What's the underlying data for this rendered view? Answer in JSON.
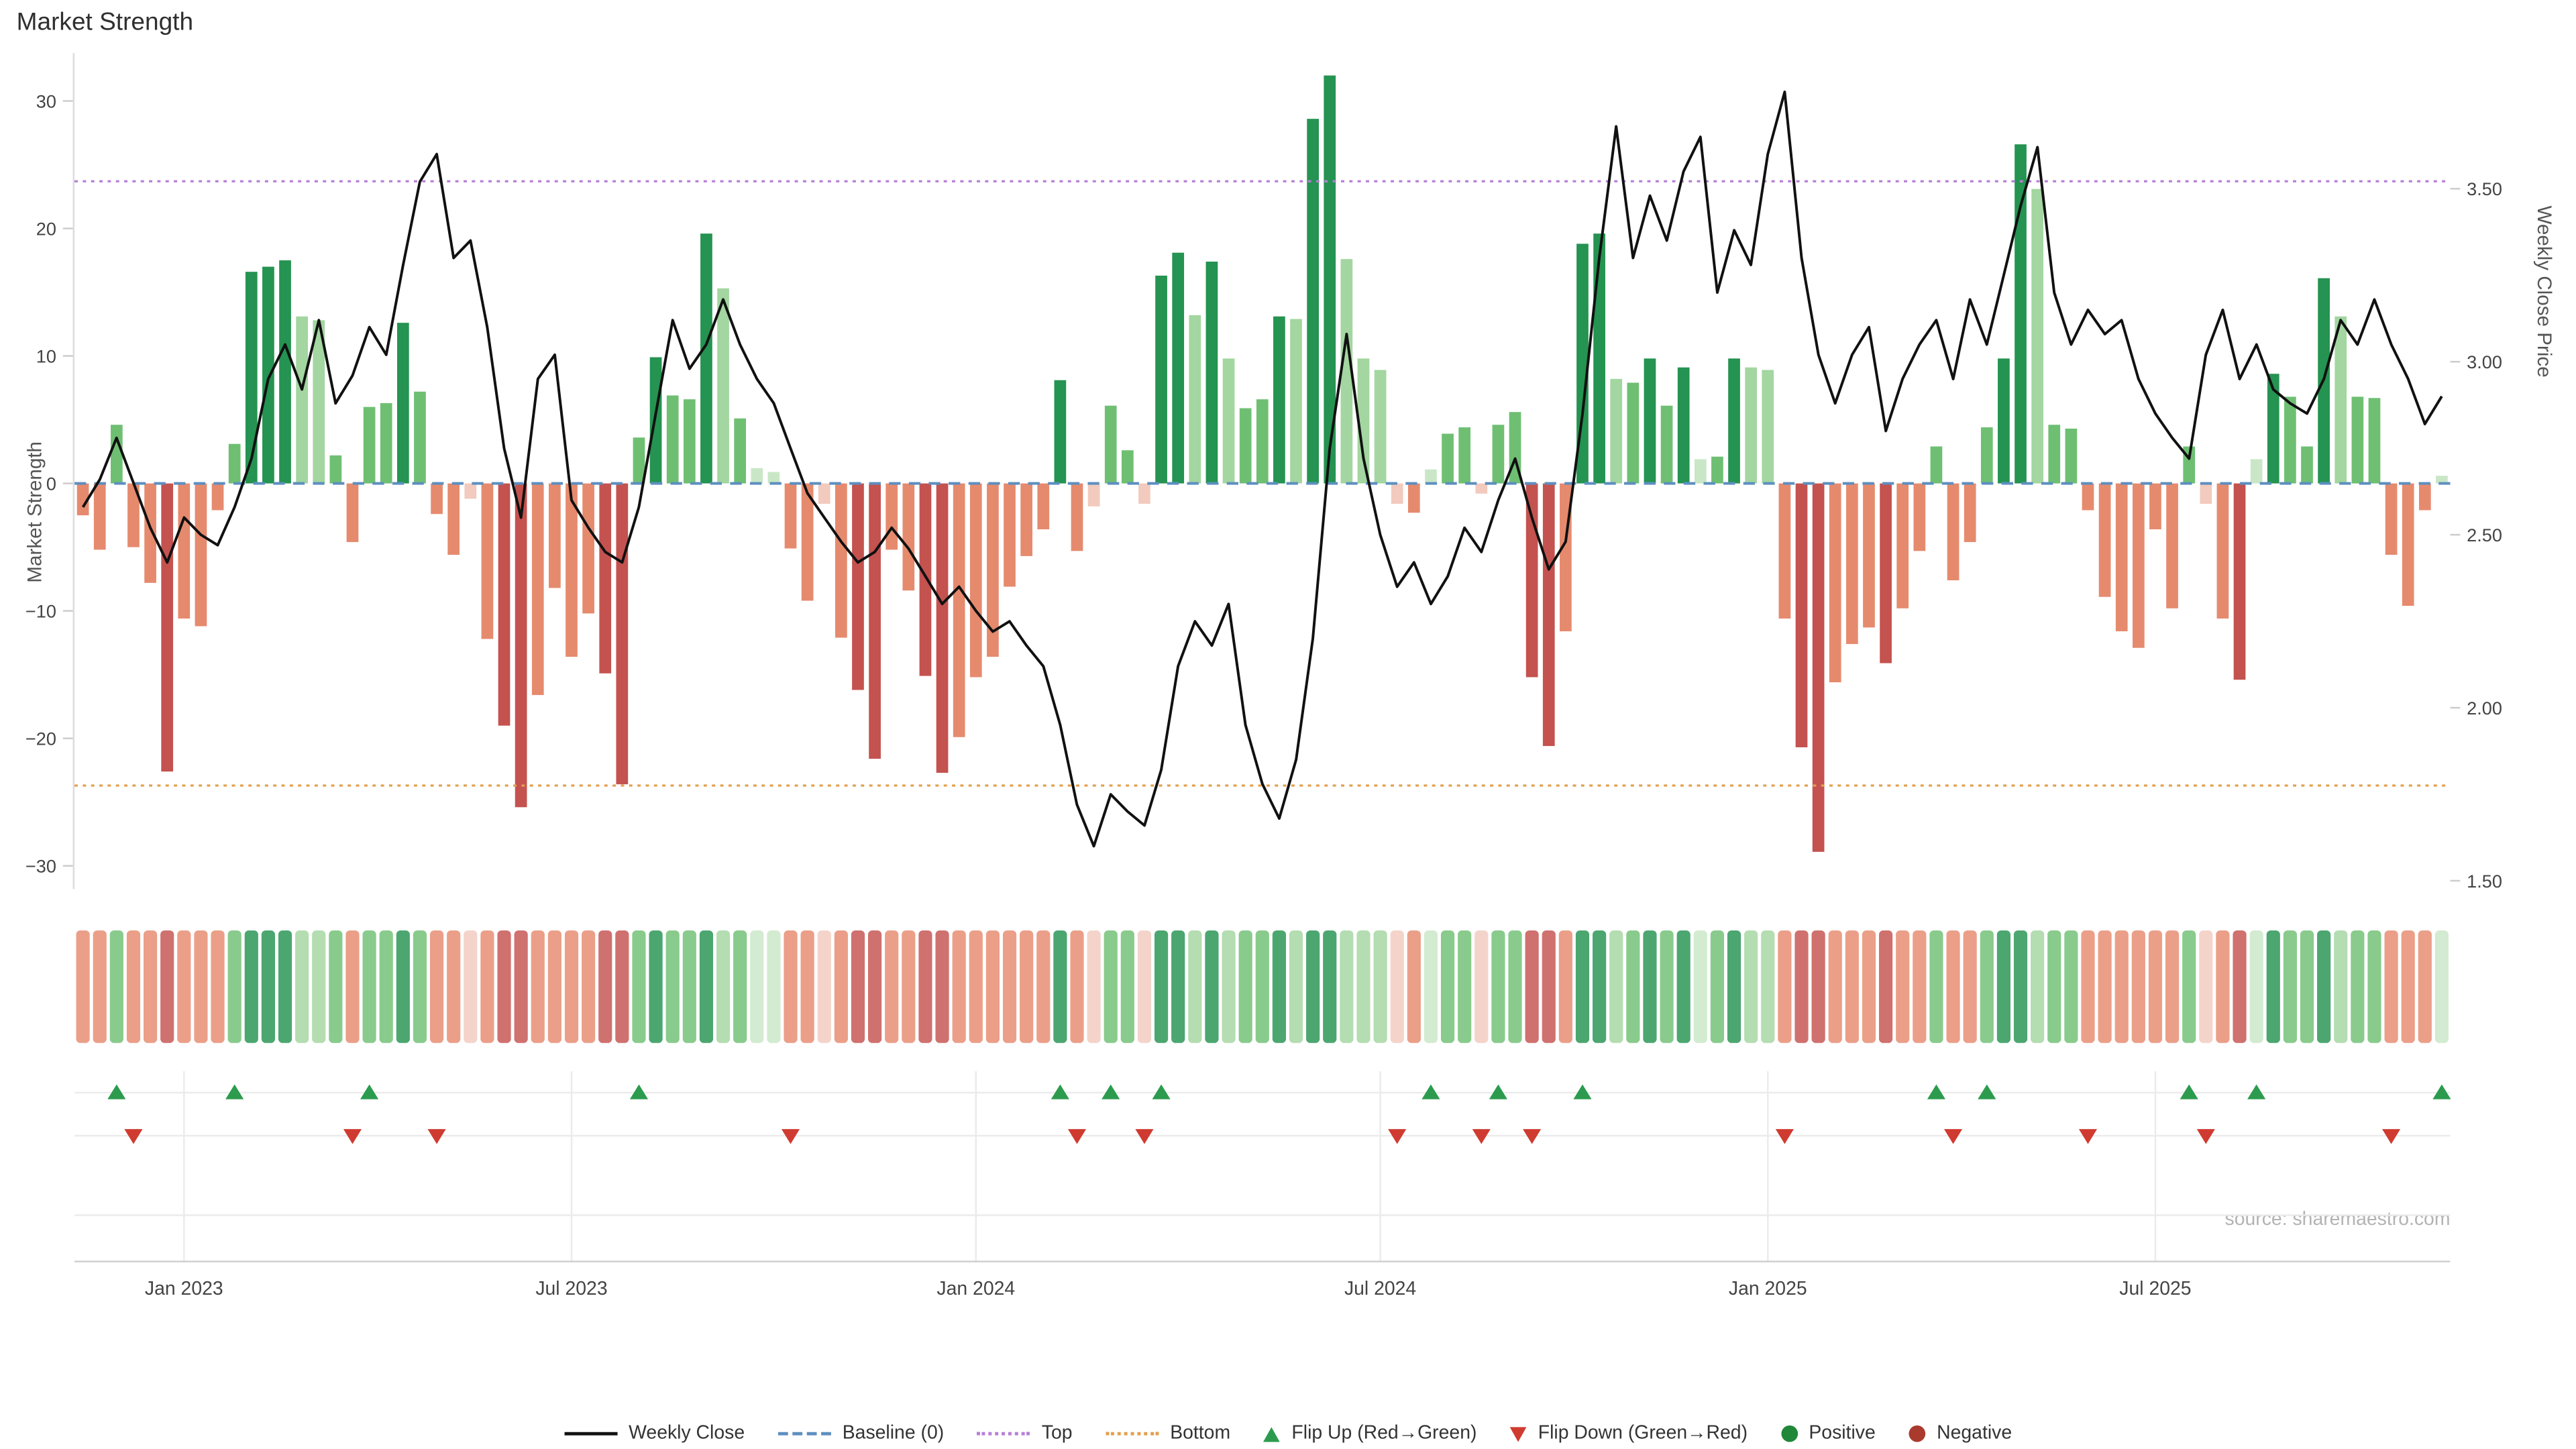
{
  "title": "Market Strength",
  "source": "source: sharemaestro.com",
  "colors": {
    "pos_dark": "#259351",
    "pos_mid": "#6fbf73",
    "pos_light": "#a3d6a0",
    "pos_faint": "#c9e7c6",
    "neg_dark": "#c4524f",
    "neg_mid": "#e68a6e",
    "neg_faint": "#f2cabe",
    "baseline": "#5d8fc0",
    "top": "#b77fd8",
    "bottom": "#e2a04f",
    "line": "#111111",
    "flip_up": "#2c9b4e",
    "flip_down": "#cf3b30",
    "positive_dot": "#218739",
    "negative_dot": "#ab3a2e",
    "grid": "#ebebeb",
    "axis": "#cfcfcf",
    "tick_text": "#444444"
  },
  "chart_data": {
    "type": "bar",
    "title": "Market Strength",
    "ylabel_left": "Market Strength",
    "ylabel_right": "Weekly Close Price",
    "y_left_ticks": [
      30,
      20,
      10,
      0,
      -10,
      -20,
      -30
    ],
    "y_left_tick_labels": [
      "30",
      "20",
      "10",
      "0",
      "−10",
      "−20",
      "−30"
    ],
    "y_left_range": [
      -32,
      33
    ],
    "y_right_ticks": [
      "3.50",
      "3.00",
      "2.50",
      "2.00",
      "1.50"
    ],
    "y_right_range": [
      1.45,
      3.9
    ],
    "baseline": 0,
    "top_threshold": 23.7,
    "bottom_threshold": -23.7,
    "x_interval": "weekly",
    "x_range": [
      "Nov 2022",
      "Nov 2025"
    ],
    "x_tick_indices": [
      6,
      29,
      53,
      77,
      100,
      123
    ],
    "x_tick_labels": [
      "Jan 2023",
      "Jul 2023",
      "Jan 2024",
      "Jul 2024",
      "Jan 2025",
      "Jul 2025"
    ],
    "grid": "off-main-panel, on-lower-panels",
    "legend_position": "bottom-center",
    "panels": [
      "strength-bars + weekly-close-line",
      "strength-heatmap-strip",
      "flip-marker-rows"
    ],
    "series": [
      {
        "name": "Market Strength",
        "type": "bar",
        "axis": "left",
        "values": [
          -2.5,
          -5.2,
          4.6,
          -5.0,
          -7.8,
          -22.6,
          -10.6,
          -11.2,
          -2.1,
          3.1,
          16.6,
          17.0,
          17.5,
          13.1,
          12.8,
          2.2,
          -4.6,
          6.0,
          6.3,
          12.6,
          7.2,
          -2.4,
          -5.6,
          -1.2,
          -12.2,
          -19.0,
          -25.4,
          -16.6,
          -8.2,
          -13.6,
          -10.2,
          -14.9,
          -23.6,
          3.6,
          9.9,
          6.9,
          6.6,
          19.6,
          15.3,
          5.1,
          1.2,
          0.9,
          -5.1,
          -9.2,
          -1.6,
          -12.1,
          -16.2,
          -21.6,
          -5.2,
          -8.4,
          -15.1,
          -22.7,
          -19.9,
          -15.2,
          -13.6,
          -8.1,
          -5.7,
          -3.6,
          8.1,
          -5.3,
          -1.8,
          6.1,
          2.6,
          -1.6,
          16.3,
          18.1,
          13.2,
          17.4,
          9.8,
          5.9,
          6.6,
          13.1,
          12.9,
          28.6,
          32.0,
          17.6,
          9.8,
          8.9,
          -1.6,
          -2.3,
          1.1,
          3.9,
          4.4,
          -0.8,
          4.6,
          5.6,
          -15.2,
          -20.6,
          -11.6,
          18.8,
          19.6,
          8.2,
          7.9,
          9.8,
          6.1,
          9.1,
          1.9,
          2.1,
          9.8,
          9.1,
          8.9,
          -10.6,
          -20.7,
          -28.9,
          -15.6,
          -12.6,
          -11.3,
          -14.1,
          -9.8,
          -5.3,
          2.9,
          -7.6,
          -4.6,
          4.4,
          9.8,
          26.6,
          23.1,
          4.6,
          4.3,
          -2.1,
          -8.9,
          -11.6,
          -12.9,
          -3.6,
          -9.8,
          2.9,
          -1.6,
          -10.6,
          -15.4,
          1.9,
          8.6,
          6.8,
          2.9,
          16.1,
          13.1,
          6.8,
          6.7,
          -5.6,
          -9.6,
          -2.1,
          0.6
        ]
      },
      {
        "name": "Weekly Close",
        "type": "line",
        "axis": "right",
        "values": [
          2.58,
          2.66,
          2.78,
          2.65,
          2.52,
          2.42,
          2.55,
          2.5,
          2.47,
          2.58,
          2.72,
          2.95,
          3.05,
          2.92,
          3.12,
          2.88,
          2.96,
          3.1,
          3.02,
          3.28,
          3.52,
          3.6,
          3.3,
          3.35,
          3.1,
          2.75,
          2.55,
          2.95,
          3.02,
          2.6,
          2.52,
          2.45,
          2.42,
          2.58,
          2.85,
          3.12,
          2.98,
          3.05,
          3.18,
          3.05,
          2.95,
          2.88,
          2.75,
          2.62,
          2.55,
          2.48,
          2.42,
          2.45,
          2.52,
          2.46,
          2.38,
          2.3,
          2.35,
          2.28,
          2.22,
          2.25,
          2.18,
          2.12,
          1.95,
          1.72,
          1.6,
          1.75,
          1.7,
          1.66,
          1.82,
          2.12,
          2.25,
          2.18,
          2.3,
          1.95,
          1.78,
          1.68,
          1.85,
          2.2,
          2.75,
          3.08,
          2.72,
          2.5,
          2.35,
          2.42,
          2.3,
          2.38,
          2.52,
          2.45,
          2.6,
          2.72,
          2.55,
          2.4,
          2.48,
          2.85,
          3.3,
          3.68,
          3.3,
          3.48,
          3.35,
          3.55,
          3.65,
          3.2,
          3.38,
          3.28,
          3.6,
          3.78,
          3.3,
          3.02,
          2.88,
          3.02,
          3.1,
          2.8,
          2.95,
          3.05,
          3.12,
          2.95,
          3.18,
          3.05,
          3.25,
          3.45,
          3.62,
          3.2,
          3.05,
          3.15,
          3.08,
          3.12,
          2.95,
          2.85,
          2.78,
          2.72,
          3.02,
          3.15,
          2.95,
          3.05,
          2.92,
          2.88,
          2.85,
          2.95,
          3.12,
          3.05,
          3.18,
          3.05,
          2.95,
          2.82,
          2.9
        ]
      }
    ],
    "legend": [
      {
        "label": "Weekly Close",
        "swatch": "line-solid",
        "color": "#111111"
      },
      {
        "label": "Baseline (0)",
        "swatch": "line-dashed",
        "color": "#5d8fc0"
      },
      {
        "label": "Top",
        "swatch": "line-dotted",
        "color": "#b77fd8"
      },
      {
        "label": "Bottom",
        "swatch": "line-dotted",
        "color": "#e2a04f"
      },
      {
        "label": "Flip Up (Red→Green)",
        "swatch": "triangle-up",
        "color": "#2c9b4e"
      },
      {
        "label": "Flip Down (Green→Red)",
        "swatch": "triangle-down",
        "color": "#cf3b30"
      },
      {
        "label": "Positive",
        "swatch": "circle",
        "color": "#218739"
      },
      {
        "label": "Negative",
        "swatch": "circle",
        "color": "#ab3a2e"
      }
    ]
  }
}
